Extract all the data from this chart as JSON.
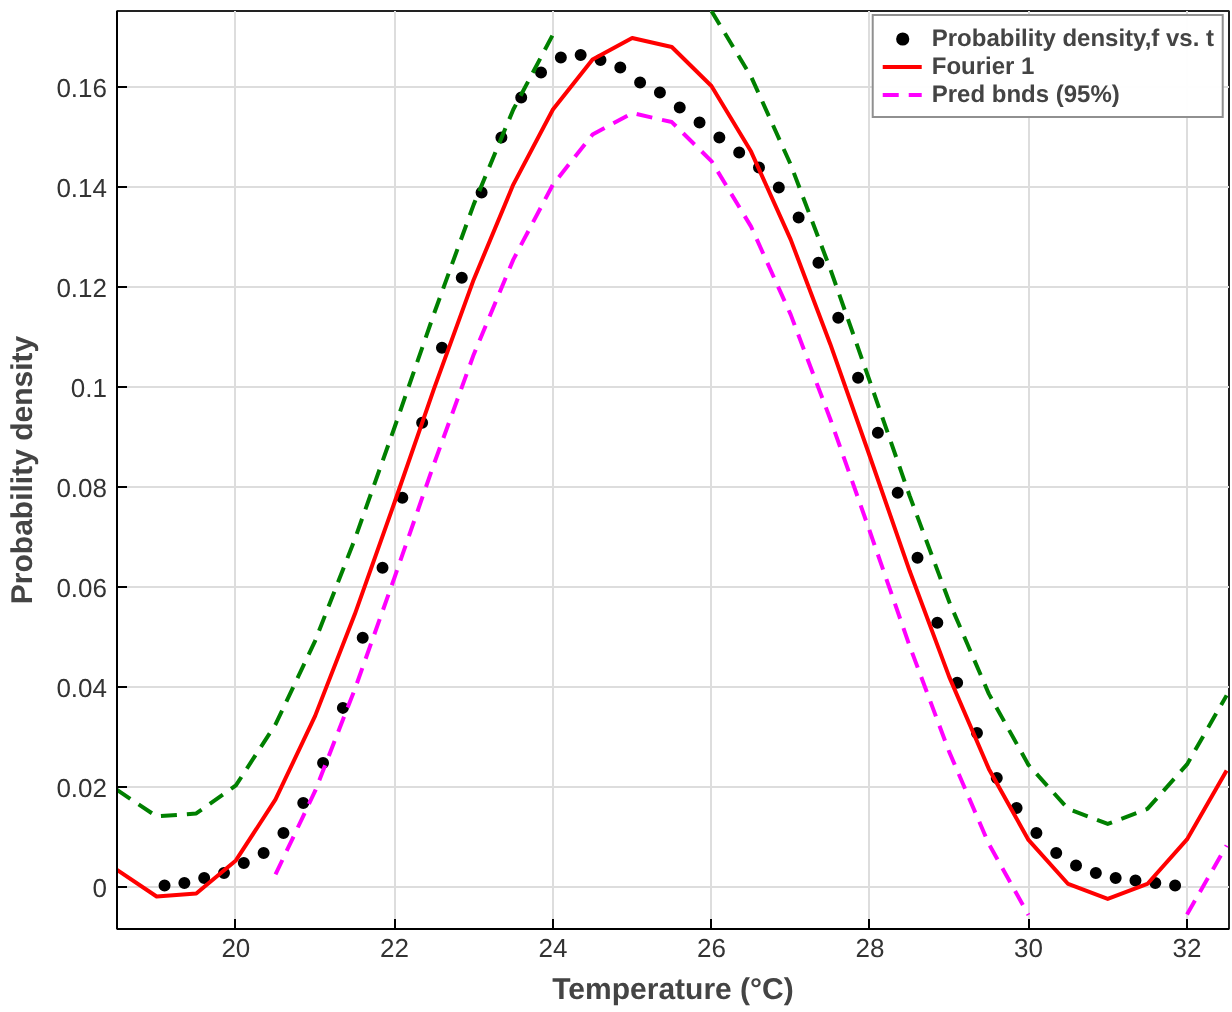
{
  "chart_data": {
    "type": "line",
    "xlabel": "Temperature (°C)",
    "ylabel": "Probability density",
    "xlim": [
      18.5,
      32.53
    ],
    "ylim": [
      -0.0082,
      0.1753
    ],
    "xticks": [
      20,
      22,
      24,
      26,
      28,
      30,
      32
    ],
    "yticks": [
      0,
      0.02,
      0.04,
      0.06,
      0.08,
      0.1,
      0.12,
      0.14,
      0.16
    ],
    "grid": true,
    "legend": "top right",
    "series": [
      {
        "name": "Probability density,f vs. t",
        "type": "scatter",
        "marker": "circle",
        "color": "#000000",
        "x": [
          19.1,
          19.35,
          19.6,
          19.85,
          20.1,
          20.35,
          20.6,
          20.85,
          21.1,
          21.35,
          21.6,
          21.85,
          22.1,
          22.35,
          22.6,
          22.85,
          23.1,
          23.35,
          23.6,
          23.85,
          24.1,
          24.35,
          24.6,
          24.85,
          25.1,
          25.35,
          25.6,
          25.85,
          26.1,
          26.35,
          26.6,
          26.85,
          27.1,
          27.35,
          27.6,
          27.85,
          28.1,
          28.35,
          28.6,
          28.85,
          29.1,
          29.35,
          29.6,
          29.85,
          30.1,
          30.35,
          30.6,
          30.85,
          31.1,
          31.35,
          31.6,
          31.85
        ],
        "values": [
          0.0005,
          0.001,
          0.002,
          0.003,
          0.005,
          0.007,
          0.011,
          0.017,
          0.025,
          0.036,
          0.05,
          0.064,
          0.078,
          0.093,
          0.108,
          0.122,
          0.139,
          0.15,
          0.158,
          0.163,
          0.166,
          0.1665,
          0.1655,
          0.164,
          0.161,
          0.159,
          0.156,
          0.153,
          0.15,
          0.147,
          0.144,
          0.14,
          0.134,
          0.125,
          0.114,
          0.102,
          0.091,
          0.079,
          0.066,
          0.053,
          0.041,
          0.031,
          0.022,
          0.016,
          0.011,
          0.007,
          0.0045,
          0.003,
          0.002,
          0.0015,
          0.001,
          0.0005
        ]
      },
      {
        "name": "Fourier 1",
        "line_style": "solid",
        "color": "#ff0000",
        "x": [
          18.5,
          19,
          19.5,
          20,
          20.5,
          21,
          21.5,
          22,
          22.5,
          23,
          23.5,
          24,
          24.5,
          25,
          25.5,
          26,
          26.5,
          27,
          27.5,
          28,
          28.5,
          29,
          29.5,
          30,
          30.5,
          31,
          31.5,
          32,
          32.5
        ],
        "values": [
          0.0036,
          -0.0017,
          -0.0011,
          0.0055,
          0.0177,
          0.0344,
          0.0547,
          0.077,
          0.0998,
          0.1216,
          0.1406,
          0.1556,
          0.1656,
          0.1699,
          0.1681,
          0.1603,
          0.1472,
          0.1296,
          0.1087,
          0.0862,
          0.0634,
          0.0422,
          0.0238,
          0.0096,
          0.0008,
          -0.0022,
          0.0008,
          0.0097,
          0.0235
        ]
      },
      {
        "name": "Pred bnds (95%)",
        "line_style": "dashed",
        "color": "#ff00ff",
        "x": [
          20.5,
          21,
          21.5,
          22,
          22.5,
          23,
          23.5,
          24,
          24.5,
          25,
          25.5,
          26,
          26.5,
          27,
          27.5,
          28,
          28.5,
          29,
          29.5,
          30,
          30.5,
          31,
          31.5,
          32,
          32.5
        ],
        "values": [
          0.0027,
          0.0194,
          0.0397,
          0.062,
          0.0848,
          0.1066,
          0.1256,
          0.1406,
          0.1506,
          0.1549,
          0.1531,
          0.1453,
          0.1322,
          0.1146,
          0.0937,
          0.0712,
          0.0484,
          0.0272,
          0.0088,
          -0.0054,
          null,
          null,
          null,
          -0.0053,
          0.0085
        ]
      },
      {
        "line_style": "dashed",
        "color": "#008000",
        "x": [
          18.5,
          19,
          19.5,
          20,
          20.5,
          21,
          21.5,
          22,
          22.5,
          23,
          23.5,
          24,
          24.5,
          25,
          25.5,
          26,
          26.5,
          27,
          27.5,
          28,
          28.5,
          29,
          29.5,
          30,
          30.5,
          31,
          31.5,
          32,
          32.5
        ],
        "values": [
          0.0196,
          0.0143,
          0.0149,
          0.0205,
          0.0327,
          0.0494,
          0.0697,
          0.092,
          0.1148,
          0.1366,
          0.1556,
          0.1706,
          null,
          null,
          null,
          0.1753,
          0.1622,
          0.1446,
          0.1237,
          0.1012,
          0.0784,
          0.0572,
          0.0388,
          0.0246,
          0.0158,
          0.0128,
          0.0158,
          0.0247,
          0.0385
        ]
      }
    ]
  }
}
